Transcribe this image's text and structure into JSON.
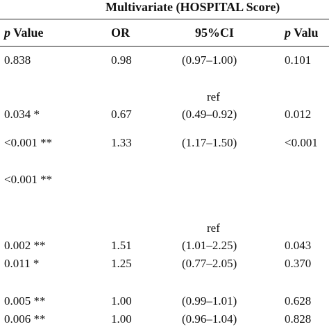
{
  "header": {
    "group_title": "Multivariate (HOSPITAL Score)",
    "col_p1_italic": "p",
    "col_p1_rest": " Value",
    "col_or": "OR",
    "col_ci": "95%CI",
    "col_p2_italic": "p",
    "col_p2_rest": " Valu"
  },
  "rows": [
    {
      "p1": "0.838",
      "or": "0.98",
      "ci": "(0.97–1.00)",
      "p2": "0.101"
    },
    {
      "p1": "",
      "or": "",
      "ci": "ref",
      "p2": ""
    },
    {
      "p1": "0.034 *",
      "or": "0.67",
      "ci": "(0.49–0.92)",
      "p2": "0.012"
    },
    {
      "p1": "<0.001 **",
      "or": "1.33",
      "ci": "(1.17–1.50)",
      "p2": "<0.001"
    },
    {
      "p1": "<0.001 **",
      "or": "",
      "ci": "",
      "p2": ""
    },
    {
      "p1": "",
      "or": "",
      "ci": "ref",
      "p2": ""
    },
    {
      "p1": "0.002 **",
      "or": "1.51",
      "ci": "(1.01–2.25)",
      "p2": "0.043"
    },
    {
      "p1": "0.011 *",
      "or": "1.25",
      "ci": "(0.77–2.05)",
      "p2": "0.370"
    },
    {
      "p1": "0.005 **",
      "or": "1.00",
      "ci": "(0.99–1.01)",
      "p2": "0.628"
    },
    {
      "p1": "0.006 **",
      "or": "1.00",
      "ci": "(0.96–1.04)",
      "p2": "0.828"
    }
  ]
}
